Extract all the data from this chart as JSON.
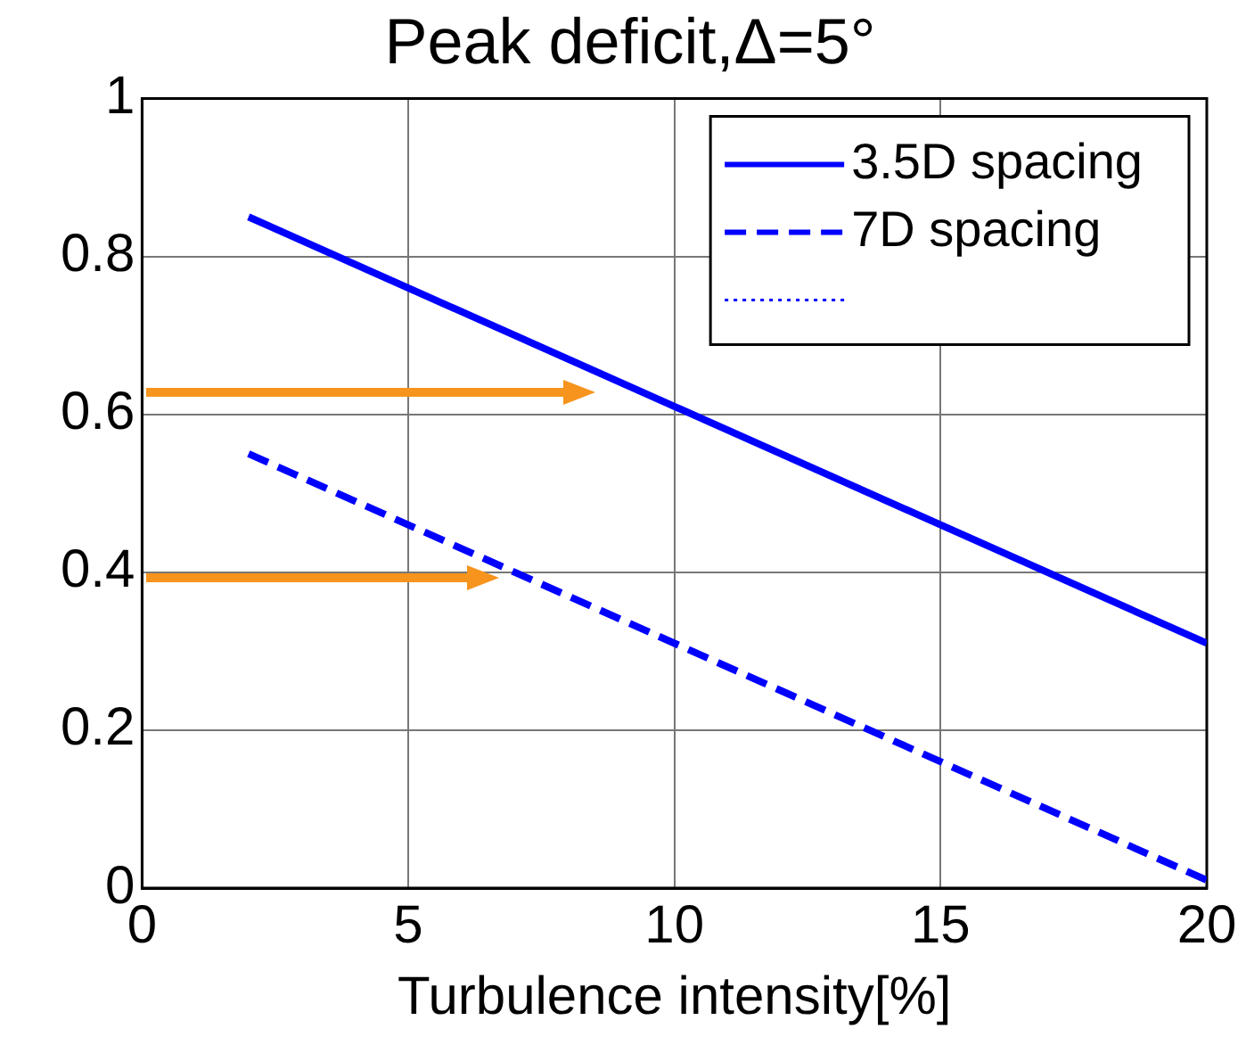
{
  "chart_data": {
    "type": "line",
    "title": "Peak deficit,Δ=5°",
    "xlabel": "Turbulence intensity[%]",
    "x": [
      2,
      20
    ],
    "series": [
      {
        "name": "3.5D spacing",
        "color": "#0000ff",
        "values": [
          0.85,
          0.31
        ],
        "line_style": "solid"
      },
      {
        "name": "7D spacing",
        "color": "#0000ff",
        "values": [
          0.55,
          0.01
        ],
        "line_style": "dashed"
      },
      {
        "color": "#0000ff",
        "values": [
          null,
          null
        ],
        "line_style": "dotted"
      }
    ],
    "xlim": [
      0,
      20
    ],
    "xticks": [
      0,
      5,
      10,
      15,
      20
    ],
    "ylim": [
      0,
      1
    ],
    "yticks": [
      0,
      0.2,
      0.4,
      0.6,
      0.8,
      1
    ],
    "grid": true,
    "legend": "top right",
    "marker": "none"
  }
}
